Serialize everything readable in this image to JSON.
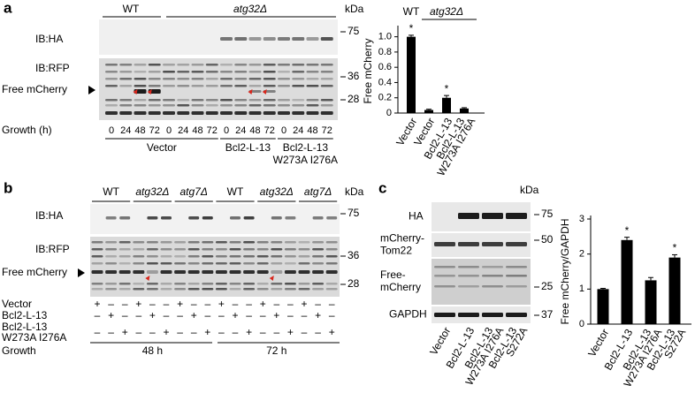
{
  "panel_a": {
    "label": "a",
    "strains": [
      "WT",
      "atg32Δ"
    ],
    "kda": "kDa",
    "blots": [
      {
        "name": "IB:HA",
        "markers": [
          "75"
        ]
      },
      {
        "name": "IB:RFP",
        "markers": [
          "36",
          "28"
        ]
      }
    ],
    "free_label": "Free mCherry",
    "growth_label": "Growth (h)",
    "timepoints": [
      "0",
      "24",
      "48",
      "72",
      "0",
      "24",
      "48",
      "72",
      "0",
      "24",
      "48",
      "72",
      "0",
      "24",
      "48",
      "72"
    ],
    "constructs": [
      [
        "Vector"
      ],
      [
        "Bcl2-L-13"
      ],
      [
        "Bcl2-L-13",
        "W273A I276A"
      ]
    ]
  },
  "panel_b": {
    "label": "b",
    "strains": [
      "WT",
      "atg32Δ",
      "atg7Δ",
      "WT",
      "atg32Δ",
      "atg7Δ"
    ],
    "kda": "kDa",
    "blots": [
      {
        "name": "IB:HA",
        "markers": [
          "75"
        ]
      },
      {
        "name": "IB:RFP",
        "markers": [
          "36",
          "28"
        ]
      }
    ],
    "free_label": "Free mCherry",
    "rows": [
      {
        "label": [
          "Vector"
        ],
        "signs": [
          "+",
          "–",
          "–",
          "+",
          "–",
          "–",
          "+",
          "–",
          "–",
          "+",
          "–",
          "–",
          "+",
          "–",
          "–",
          "+",
          "–",
          "–"
        ]
      },
      {
        "label": [
          "Bcl2-L-13"
        ],
        "signs": [
          "–",
          "+",
          "–",
          "–",
          "+",
          "–",
          "–",
          "+",
          "–",
          "–",
          "+",
          "–",
          "–",
          "+",
          "–",
          "–",
          "+",
          "–"
        ]
      },
      {
        "label": [
          "Bcl2-L-13",
          "W273A I276A"
        ],
        "signs": [
          "–",
          "–",
          "+",
          "–",
          "–",
          "+",
          "–",
          "–",
          "+",
          "–",
          "–",
          "+",
          "–",
          "–",
          "+",
          "–",
          "–",
          "+"
        ]
      }
    ],
    "growth_label": "Growth",
    "growth": [
      "48 h",
      "72 h"
    ]
  },
  "panel_c": {
    "label": "c",
    "kda": "kDa",
    "blots": [
      {
        "name": [
          "HA"
        ],
        "markers": [
          "75"
        ]
      },
      {
        "name": [
          "mCherry-",
          "Tom22"
        ],
        "markers": [
          "50"
        ]
      },
      {
        "name": [
          "Free-",
          "mCherry"
        ],
        "markers": [
          "25"
        ]
      },
      {
        "name": [
          "GAPDH"
        ],
        "markers": [
          "37"
        ]
      }
    ],
    "lanes": [
      [
        "Vector"
      ],
      [
        "Bcl2-L-13"
      ],
      [
        "Bcl2-L-13",
        "W273A I276A"
      ],
      [
        "Bcl2-L-13",
        "S272A"
      ]
    ]
  },
  "chart_data": [
    {
      "type": "bar",
      "y_label": "Free mCherry",
      "group_labels": [
        "WT",
        "atg32Δ"
      ],
      "categories": [
        [
          "Vector"
        ],
        [
          "Vector"
        ],
        [
          "Bcl2-L-13"
        ],
        [
          "Bcl2-L-13",
          "W273A I276A"
        ]
      ],
      "values": [
        1.0,
        0.04,
        0.2,
        0.06
      ],
      "errors": [
        0.02,
        0.01,
        0.03,
        0.01
      ],
      "significance": [
        "*",
        null,
        "*",
        null
      ],
      "color": "#000000",
      "ylim": [
        0,
        1.1
      ],
      "yticks": [
        0,
        0.2,
        0.4,
        0.6,
        0.8,
        {
          "value": 1,
          "label": "1.0"
        }
      ]
    },
    {
      "type": "bar",
      "y_label": "Free mCherry/GAPDH",
      "categories": [
        [
          "Vector"
        ],
        [
          "Bcl2-L-13"
        ],
        [
          "Bcl2-L-13",
          "W273A I276A"
        ],
        [
          "Bcl2-L-13",
          "S272A"
        ]
      ],
      "values": [
        1.0,
        2.4,
        1.25,
        1.9
      ],
      "errors": [
        0.02,
        0.08,
        0.08,
        0.08
      ],
      "significance": [
        null,
        "*",
        null,
        "*"
      ],
      "color": "#000000",
      "ylim": [
        0,
        3
      ],
      "yticks": [
        0,
        1,
        2,
        3
      ]
    }
  ]
}
